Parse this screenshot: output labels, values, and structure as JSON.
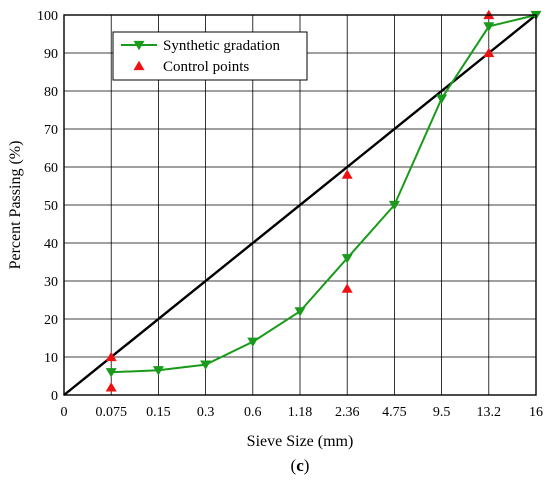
{
  "chart_data": {
    "type": "line",
    "xlabel": "Sieve Size (mm)",
    "ylabel": "Percent Passing (%)",
    "caption_open": "(",
    "caption_letter": "c",
    "caption_close": ")",
    "x_tick_labels": [
      "0",
      "0.075",
      "0.15",
      "0.3",
      "0.6",
      "1.18",
      "2.36",
      "4.75",
      "9.5",
      "13.2",
      "16"
    ],
    "ylim": [
      0,
      100
    ],
    "y_ticks": [
      0,
      10,
      20,
      30,
      40,
      50,
      60,
      70,
      80,
      90,
      100
    ],
    "grid": true,
    "legend_position": "top-left",
    "max_density_line": {
      "points": [
        [
          0,
          0
        ],
        [
          10,
          100
        ]
      ],
      "color": "#000000"
    },
    "series": [
      {
        "name": "Synthetic gradation",
        "color": "#1a9a1a",
        "marker": "triangle-down",
        "x_index": [
          1,
          2,
          3,
          4,
          5,
          6,
          7,
          8,
          9,
          10
        ],
        "values": [
          6,
          6.5,
          8,
          14,
          22,
          36,
          50,
          78,
          97,
          100
        ]
      },
      {
        "name": "Control points",
        "color": "#ee1111",
        "marker": "triangle-up",
        "x_index": [
          1,
          1,
          6,
          6,
          9,
          9
        ],
        "values": [
          10,
          2,
          58,
          28,
          100,
          90
        ]
      }
    ]
  }
}
